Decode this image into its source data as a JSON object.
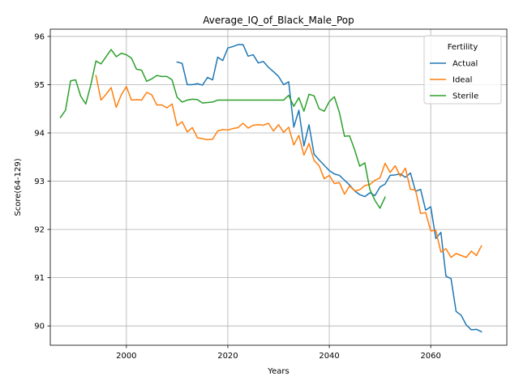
{
  "chart_data": {
    "type": "line",
    "title": "Average_IQ_of_Black_Male_Pop",
    "xlabel": "Years",
    "ylabel": "Score(64-129)",
    "xlim": [
      1985,
      2075
    ],
    "ylim": [
      89.6,
      96.15
    ],
    "xticks": [
      2000,
      2020,
      2040,
      2060
    ],
    "yticks": [
      90,
      91,
      92,
      93,
      94,
      95,
      96
    ],
    "grid": true,
    "legend": {
      "title": "Fertility",
      "placement": "top-right",
      "entries": [
        "Actual",
        "Ideal",
        "Sterile"
      ]
    },
    "series": [
      {
        "name": "Actual",
        "color": "#1f77b4",
        "x": [
          2010,
          2011,
          2012,
          2013,
          2014,
          2015,
          2016,
          2017,
          2018,
          2019,
          2020,
          2021,
          2022,
          2023,
          2024,
          2025,
          2026,
          2027,
          2028,
          2029,
          2030,
          2031,
          2032,
          2033,
          2034,
          2035,
          2036,
          2037,
          2038,
          2039,
          2040,
          2041,
          2042,
          2043,
          2044,
          2045,
          2046,
          2047,
          2048,
          2049,
          2050,
          2051,
          2052,
          2053,
          2054,
          2055,
          2056,
          2057,
          2058,
          2059,
          2060,
          2061,
          2062,
          2063,
          2064,
          2065,
          2066,
          2067,
          2068,
          2069,
          2070
        ],
        "y": [
          95.47,
          95.44,
          95.0,
          95.0,
          95.02,
          94.99,
          95.15,
          95.1,
          95.57,
          95.5,
          95.76,
          95.79,
          95.83,
          95.83,
          95.59,
          95.62,
          95.45,
          95.48,
          95.36,
          95.27,
          95.17,
          95.0,
          95.06,
          94.12,
          94.47,
          93.73,
          94.17,
          93.56,
          93.44,
          93.33,
          93.22,
          93.15,
          93.12,
          93.02,
          92.92,
          92.8,
          92.72,
          92.68,
          92.76,
          92.7,
          92.88,
          92.94,
          93.12,
          93.13,
          93.15,
          93.08,
          93.17,
          92.79,
          92.83,
          92.4,
          92.47,
          91.81,
          91.94,
          91.03,
          90.98,
          90.3,
          90.22,
          90.02,
          89.92,
          89.93,
          89.88
        ]
      },
      {
        "name": "Ideal",
        "color": "#ff7f0e",
        "x": [
          1994,
          1995,
          1996,
          1997,
          1998,
          1999,
          2000,
          2001,
          2002,
          2003,
          2004,
          2005,
          2006,
          2007,
          2008,
          2009,
          2010,
          2011,
          2012,
          2013,
          2014,
          2015,
          2016,
          2017,
          2018,
          2019,
          2020,
          2021,
          2022,
          2023,
          2024,
          2025,
          2026,
          2027,
          2028,
          2029,
          2030,
          2031,
          2032,
          2033,
          2034,
          2035,
          2036,
          2037,
          2038,
          2039,
          2040,
          2041,
          2042,
          2043,
          2044,
          2045,
          2046,
          2047,
          2048,
          2049,
          2050,
          2051,
          2052,
          2053,
          2054,
          2055,
          2056,
          2057,
          2058,
          2059,
          2060,
          2061,
          2062,
          2063,
          2064,
          2065,
          2066,
          2067,
          2068,
          2069,
          2070
        ],
        "y": [
          95.19,
          94.68,
          94.8,
          94.94,
          94.53,
          94.79,
          94.96,
          94.68,
          94.69,
          94.68,
          94.84,
          94.79,
          94.58,
          94.58,
          94.52,
          94.6,
          94.15,
          94.23,
          94.02,
          94.11,
          93.9,
          93.88,
          93.86,
          93.87,
          94.04,
          94.07,
          94.06,
          94.09,
          94.11,
          94.2,
          94.1,
          94.16,
          94.17,
          94.16,
          94.2,
          94.04,
          94.17,
          94.01,
          94.12,
          93.75,
          93.95,
          93.54,
          93.78,
          93.43,
          93.32,
          93.05,
          93.12,
          92.95,
          92.97,
          92.73,
          92.9,
          92.8,
          92.82,
          92.91,
          92.93,
          93.02,
          93.07,
          93.37,
          93.18,
          93.32,
          93.1,
          93.27,
          92.83,
          92.82,
          92.33,
          92.35,
          91.97,
          91.98,
          91.53,
          91.6,
          91.42,
          91.5,
          91.46,
          91.42,
          91.55,
          91.46,
          91.66
        ]
      },
      {
        "name": "Sterile",
        "color": "#2ca02c",
        "x": [
          1987,
          1988,
          1989,
          1990,
          1991,
          1992,
          1993,
          1994,
          1995,
          1996,
          1997,
          1998,
          1999,
          2000,
          2001,
          2002,
          2003,
          2004,
          2005,
          2006,
          2007,
          2008,
          2009,
          2010,
          2011,
          2012,
          2013,
          2014,
          2015,
          2016,
          2017,
          2018,
          2019,
          2020,
          2021,
          2022,
          2023,
          2024,
          2025,
          2026,
          2027,
          2028,
          2029,
          2030,
          2031,
          2032,
          2033,
          2034,
          2035,
          2036,
          2037,
          2038,
          2039,
          2040,
          2041,
          2042,
          2043,
          2044,
          2045,
          2046,
          2047,
          2048,
          2049,
          2050,
          2051
        ],
        "y": [
          94.32,
          94.47,
          95.08,
          95.1,
          94.76,
          94.6,
          95.0,
          95.49,
          95.43,
          95.58,
          95.73,
          95.58,
          95.65,
          95.62,
          95.55,
          95.32,
          95.3,
          95.07,
          95.12,
          95.19,
          95.17,
          95.17,
          95.1,
          94.74,
          94.64,
          94.68,
          94.7,
          94.69,
          94.62,
          94.63,
          94.64,
          94.68,
          94.68,
          94.68,
          94.68,
          94.68,
          94.68,
          94.68,
          94.68,
          94.68,
          94.68,
          94.68,
          94.68,
          94.68,
          94.68,
          94.78,
          94.55,
          94.73,
          94.45,
          94.8,
          94.77,
          94.5,
          94.45,
          94.65,
          94.75,
          94.42,
          93.93,
          93.94,
          93.65,
          93.31,
          93.38,
          92.83,
          92.6,
          92.44,
          92.67
        ]
      }
    ]
  }
}
